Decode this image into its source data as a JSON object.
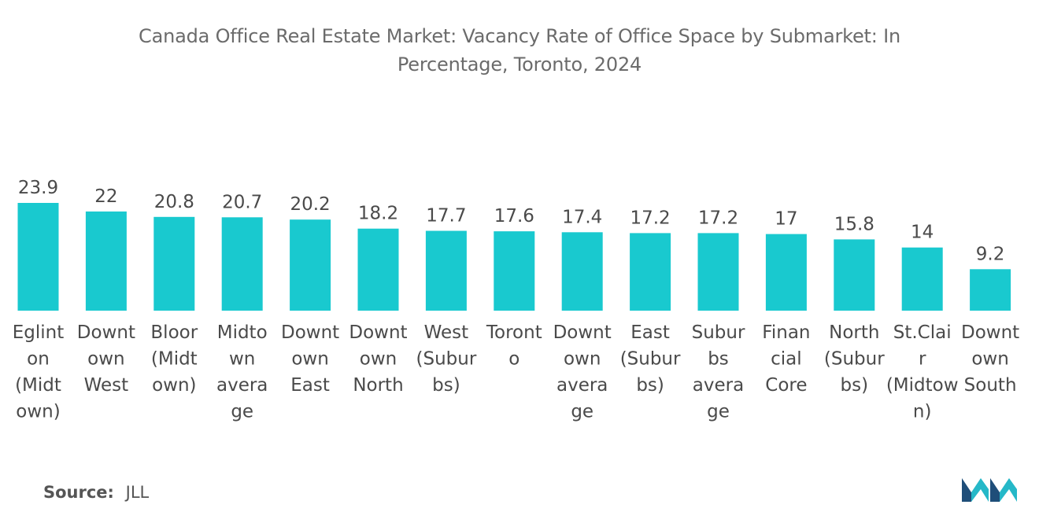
{
  "title_line1": "Canada Office Real Estate Market: Vacancy Rate of Office Space by Submarket: In",
  "title_line2": "Percentage, Toronto, 2024",
  "source_label": "Source:",
  "source_value": "JLL",
  "logo_icon": "mordor-intelligence-logo-icon",
  "colors": {
    "bar": "#19c9cf",
    "logo_dark": "#1f4e79",
    "logo_light": "#25b8c8"
  },
  "chart_data": {
    "type": "bar",
    "title": "Canada Office Real Estate Market: Vacancy Rate of Office Space by Submarket: In Percentage, Toronto, 2024",
    "categories": [
      [
        "Eglint",
        "on",
        "(Midt",
        "own)"
      ],
      [
        "Downt",
        "own",
        "West"
      ],
      [
        "Bloor",
        "(Midt",
        "own)"
      ],
      [
        "Midto",
        "wn",
        "avera",
        "ge"
      ],
      [
        "Downt",
        "own",
        "East"
      ],
      [
        "Downt",
        "own",
        "North"
      ],
      [
        "West",
        "(Subur",
        "bs)"
      ],
      [
        "Toront",
        "o"
      ],
      [
        "Downt",
        "own",
        "avera",
        "ge"
      ],
      [
        "East",
        "(Subur",
        "bs)"
      ],
      [
        "Subur",
        "bs",
        "avera",
        "ge"
      ],
      [
        "Finan",
        "cial",
        "Core"
      ],
      [
        "North",
        "(Subur",
        "bs)"
      ],
      [
        "St.Clai",
        "r",
        "(Midtow",
        "n)"
      ],
      [
        "Downt",
        "own",
        "South"
      ]
    ],
    "values": [
      23.9,
      22,
      20.8,
      20.7,
      20.2,
      18.2,
      17.7,
      17.6,
      17.4,
      17.2,
      17.2,
      17,
      15.8,
      14,
      9.2
    ],
    "value_labels": [
      "23.9",
      "22",
      "20.8",
      "20.7",
      "20.2",
      "18.2",
      "17.7",
      "17.6",
      "17.4",
      "17.2",
      "17.2",
      "17",
      "15.8",
      "14",
      "9.2"
    ],
    "xlabel": "",
    "ylabel": "",
    "ylim": [
      0,
      23.9
    ],
    "grid": false,
    "legend": "none"
  }
}
